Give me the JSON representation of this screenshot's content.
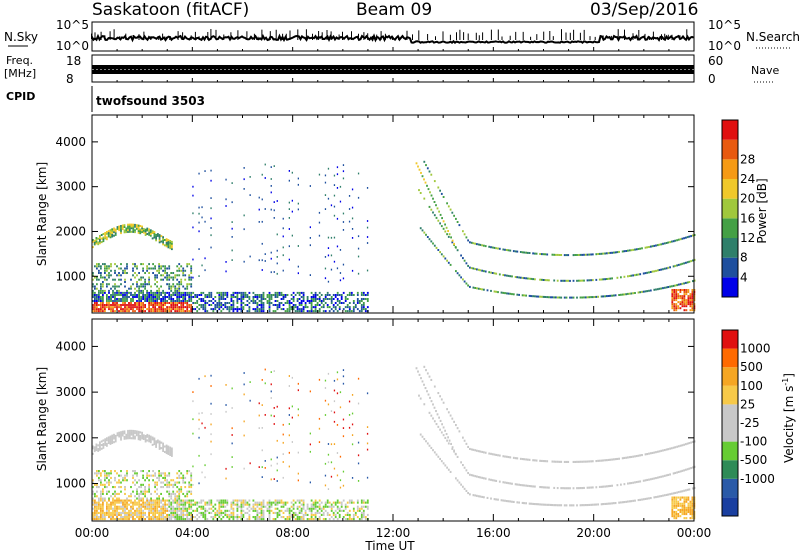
{
  "header": {
    "station": "Saskatoon (fitACF)",
    "beam": "Beam 09",
    "date": "03/Sep/2016"
  },
  "panels": {
    "noise": {
      "left_label": "N.Sky",
      "left_ticks": [
        "10^5",
        "10^0"
      ],
      "right_ticks": [
        "10^5",
        "10^0"
      ],
      "right_label": "N.Search"
    },
    "freq": {
      "left_label_1": "Freq.",
      "left_label_2": "[MHz]",
      "left_ticks": [
        "18",
        "8"
      ],
      "right_ticks": [
        "60",
        "0"
      ],
      "right_label": "Nave"
    },
    "cpid": {
      "label": "CPID",
      "value": "twofsound 3503"
    }
  },
  "colors": {
    "power_scale": [
      "#0000e8",
      "#1e4f9e",
      "#2f7f6a",
      "#44a045",
      "#a0c83c",
      "#f0c82a",
      "#f59a14",
      "#e85a10",
      "#e01010"
    ],
    "velocity_scale": [
      "#e01010",
      "#ff6a00",
      "#f5a623",
      "#f7c948",
      "#c8c8c8",
      "#c8c8c8",
      "#66cc33",
      "#2e8b57",
      "#2a5aa8",
      "#1a3fa0"
    ]
  },
  "chart_data": [
    {
      "type": "heatmap",
      "title": "Power",
      "xlabel": "",
      "ylabel": "Slant Range [km]",
      "x_ticks": [
        "00:00",
        "04:00",
        "08:00",
        "12:00",
        "16:00",
        "20:00",
        "00:00"
      ],
      "y_ticks": [
        "1000",
        "2000",
        "3000",
        "4000"
      ],
      "xlim_hours": [
        0,
        24
      ],
      "ylim_km": [
        180,
        4600
      ],
      "colorbar": {
        "label": "Power [dB]",
        "ticks": [
          "4",
          "8",
          "12",
          "16",
          "20",
          "24",
          "28"
        ],
        "range_db": [
          0,
          32
        ]
      }
    },
    {
      "type": "heatmap",
      "title": "Velocity",
      "xlabel": "Time UT",
      "ylabel": "Slant Range [km]",
      "x_ticks": [
        "00:00",
        "04:00",
        "08:00",
        "12:00",
        "16:00",
        "20:00",
        "00:00"
      ],
      "y_ticks": [
        "1000",
        "2000",
        "3000",
        "4000"
      ],
      "xlim_hours": [
        0,
        24
      ],
      "ylim_km": [
        180,
        4600
      ],
      "colorbar": {
        "label": "Velocity [m s",
        "label_sup": "-1",
        "label_close": "]",
        "ticks": [
          "1000",
          "500",
          "100",
          "25",
          "-25",
          "-100",
          "-500",
          "-1000"
        ]
      }
    }
  ]
}
